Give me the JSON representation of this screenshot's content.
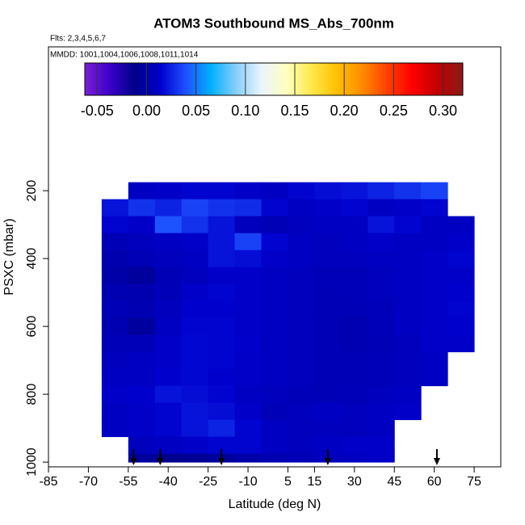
{
  "chart_data": {
    "type": "heatmap",
    "title": "ATOM3 Southbound MS_Abs_700nm",
    "subtitle": "Flts: 2,3,4,5,6,7",
    "annotation": "MMDD: 1001,1004,1006,1008,1011,1014",
    "xlabel": "Latitude (deg N)",
    "ylabel": "PSXC (mbar)",
    "xlim": [
      -85,
      85
    ],
    "xticks": [
      -85,
      -70,
      -55,
      -40,
      -25,
      -10,
      5,
      15,
      30,
      45,
      60,
      75
    ],
    "ylim": [
      1014,
      -224
    ],
    "yticks": [
      200,
      400,
      600,
      800,
      1000
    ],
    "x": [
      -65,
      -55,
      -45,
      -35,
      -25,
      -15,
      -5,
      5,
      15,
      25,
      35,
      45,
      55,
      65,
      75
    ],
    "y": [
      175,
      225,
      275,
      325,
      375,
      425,
      475,
      525,
      575,
      625,
      675,
      725,
      775,
      825,
      875,
      925,
      975,
      1000
    ],
    "z": [
      [
        null,
        0.01,
        0.012,
        0.015,
        0.015,
        0.012,
        0.01,
        0.015,
        0.018,
        0.02,
        0.025,
        0.03,
        0.035,
        null
      ],
      [
        0.02,
        0.03,
        0.025,
        0.035,
        0.03,
        0.028,
        0.015,
        0.01,
        0.012,
        0.015,
        0.01,
        0.012,
        0.015,
        null
      ],
      [
        0.015,
        0.012,
        0.04,
        0.03,
        0.02,
        0.008,
        0.005,
        0.008,
        0.01,
        0.01,
        0.02,
        0.015,
        0.01,
        0.01
      ],
      [
        0.005,
        0.008,
        0.01,
        0.012,
        0.02,
        0.035,
        0.015,
        0.01,
        0.008,
        0.01,
        0.012,
        0.01,
        0.01,
        0.012
      ],
      [
        0.002,
        0.005,
        0.008,
        0.01,
        0.02,
        0.018,
        0.012,
        0.01,
        0.008,
        0.008,
        0.01,
        0.01,
        0.012,
        0.015
      ],
      [
        0.0,
        -0.005,
        0.005,
        0.008,
        0.012,
        0.012,
        0.01,
        0.008,
        0.006,
        0.006,
        0.008,
        0.01,
        0.012,
        0.012
      ],
      [
        0.004,
        0.003,
        0.006,
        0.012,
        0.015,
        0.012,
        0.01,
        0.008,
        0.005,
        0.006,
        0.008,
        0.01,
        0.012,
        0.014
      ],
      [
        0.005,
        0.004,
        0.008,
        0.014,
        0.014,
        0.012,
        0.01,
        0.008,
        0.005,
        0.005,
        0.007,
        0.01,
        0.012,
        0.015
      ],
      [
        0.004,
        -0.004,
        0.01,
        0.015,
        0.015,
        0.012,
        0.01,
        0.008,
        0.005,
        0.004,
        0.006,
        0.01,
        0.012,
        0.014
      ],
      [
        0.006,
        0.006,
        0.012,
        0.016,
        0.015,
        0.013,
        0.01,
        0.008,
        0.005,
        0.004,
        0.005,
        0.008,
        0.012,
        0.012
      ],
      [
        0.008,
        0.01,
        0.012,
        0.016,
        0.015,
        0.012,
        0.01,
        0.008,
        0.005,
        0.005,
        0.006,
        0.008,
        0.01,
        null
      ],
      [
        0.01,
        0.01,
        0.014,
        0.016,
        0.014,
        0.012,
        0.01,
        0.008,
        0.005,
        0.005,
        0.006,
        0.008,
        0.01,
        null
      ],
      [
        0.012,
        0.014,
        0.02,
        0.018,
        0.015,
        0.01,
        0.008,
        0.006,
        0.005,
        0.006,
        0.008,
        0.01,
        null,
        null
      ],
      [
        0.01,
        0.012,
        0.015,
        0.02,
        0.018,
        0.012,
        0.006,
        0.008,
        0.01,
        0.008,
        0.01,
        0.012,
        null,
        null
      ],
      [
        0.01,
        0.012,
        0.015,
        0.02,
        0.025,
        0.015,
        0.01,
        0.008,
        0.008,
        0.008,
        0.01,
        null,
        null,
        null
      ],
      [
        null,
        0.008,
        0.01,
        0.012,
        0.015,
        0.015,
        0.01,
        0.008,
        0.01,
        0.012,
        0.012,
        null,
        null,
        null
      ],
      [
        null,
        -0.005,
        -0.01,
        -0.008,
        -0.005,
        0.0,
        0.004,
        0.006,
        0.008,
        0.01,
        0.012,
        null,
        null,
        null
      ]
    ],
    "arrows_x": [
      -53,
      -43,
      -20,
      20,
      61
    ],
    "colorbar": {
      "clim": [
        -0.0625,
        0.32
      ],
      "ticks": [
        -0.05,
        {
          "value": 0,
          "label": "0.00"
        },
        0.05,
        {
          "value": 0.1,
          "label": "0.10"
        },
        0.15,
        {
          "value": 0.2,
          "label": "0.20"
        },
        0.25,
        {
          "value": 0.3,
          "label": "0.30"
        }
      ],
      "colors": [
        "#7b1fd9",
        "#3a00c8",
        "#00008b",
        "#0000cd",
        "#1e50ff",
        "#00b0ff",
        "#87cefa",
        "#eaf4ff",
        "#ffffc0",
        "#ffe84a",
        "#ffc000",
        "#ff8c00",
        "#ff4000",
        "#ff0000",
        "#c00000",
        "#8b1a1a"
      ]
    }
  }
}
